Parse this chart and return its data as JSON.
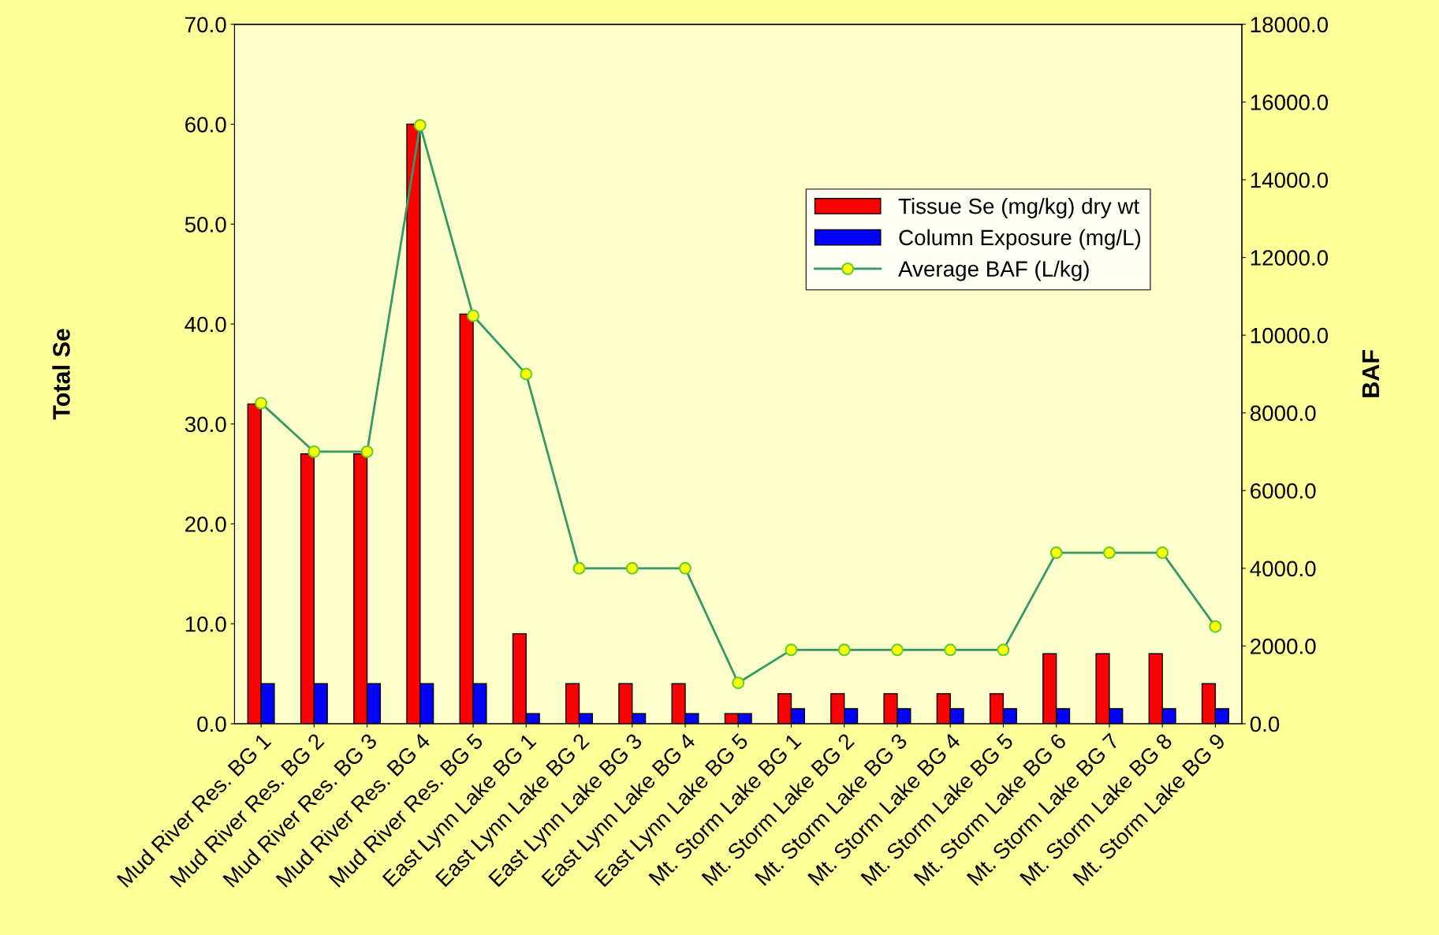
{
  "chart_data": {
    "type": "bar",
    "ylabel": "Total Se",
    "y2label": "BAF",
    "categories": [
      "Mud River Res. BG 1",
      "Mud River Res. BG 2",
      "Mud River Res. BG 3",
      "Mud River Res. BG 4",
      "Mud River Res. BG 5",
      "East Lynn Lake BG 1",
      "East Lynn Lake BG 2",
      "East Lynn Lake BG 3",
      "East Lynn Lake BG 4",
      "East Lynn Lake BG 5",
      "Mt. Storm Lake BG 1",
      "Mt. Storm Lake BG 2",
      "Mt. Storm Lake BG 3",
      "Mt. Storm Lake BG 4",
      "Mt. Storm Lake BG 5",
      "Mt. Storm Lake BG 6",
      "Mt. Storm Lake BG 7",
      "Mt. Storm Lake BG 8",
      "Mt. Storm Lake BG 9"
    ],
    "series": [
      {
        "name": "Tissue Se (mg/kg) dry wt",
        "color": "#ff0000",
        "values": [
          32,
          27,
          27,
          60,
          41,
          9,
          4,
          4,
          4,
          1,
          3,
          3,
          3,
          3,
          3,
          7,
          7,
          7,
          4
        ]
      },
      {
        "name": "Column Exposure (mg/L)",
        "color": "#0000ff",
        "values": [
          4,
          4,
          4,
          4,
          4,
          1,
          1,
          1,
          1,
          1,
          1.5,
          1.5,
          1.5,
          1.5,
          1.5,
          1.5,
          1.5,
          1.5,
          1.5
        ]
      },
      {
        "name": "Average BAF (L/kg)",
        "type": "line",
        "axis": "y2",
        "color": "#339966",
        "marker": "circle",
        "values": [
          8250,
          7000,
          7000,
          15400,
          10500,
          9000,
          4000,
          4000,
          4000,
          1050,
          1900,
          1900,
          1900,
          1900,
          1900,
          4400,
          4400,
          4400,
          2500
        ]
      }
    ],
    "ylim": [
      0,
      70
    ],
    "yticks": [
      {
        "value": 0,
        "label": "0.0"
      },
      {
        "value": 10,
        "label": "10.0"
      },
      {
        "value": 20,
        "label": "20.0"
      },
      {
        "value": 30,
        "label": "30.0"
      },
      {
        "value": 40,
        "label": "40.0"
      },
      {
        "value": 50,
        "label": "50.0"
      },
      {
        "value": 60,
        "label": "60.0"
      },
      {
        "value": 70,
        "label": "70.0"
      }
    ],
    "y2lim": [
      0,
      18000
    ],
    "y2ticks": [
      {
        "value": 0,
        "label": "0.0"
      },
      {
        "value": 2000,
        "label": "2000.0"
      },
      {
        "value": 4000,
        "label": "4000.0"
      },
      {
        "value": 6000,
        "label": "6000.0"
      },
      {
        "value": 8000,
        "label": "8000.0"
      },
      {
        "value": 10000,
        "label": "10000.0"
      },
      {
        "value": 12000,
        "label": "12000.0"
      },
      {
        "value": 14000,
        "label": "14000.0"
      },
      {
        "value": 16000,
        "label": "16000.0"
      },
      {
        "value": 18000,
        "label": "18000.0"
      }
    ],
    "grid": false,
    "legend": "top right"
  }
}
